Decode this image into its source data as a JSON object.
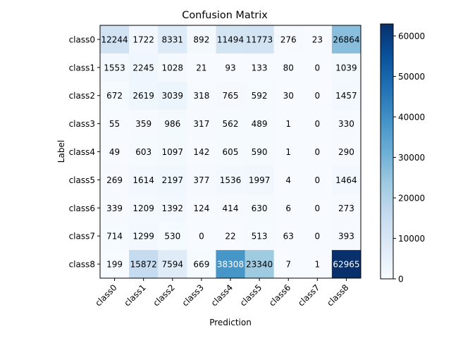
{
  "chart_data": {
    "type": "heatmap",
    "title": "Confusion Matrix",
    "xlabel": "Prediction",
    "ylabel": "Label",
    "x_categories": [
      "class0",
      "class1",
      "class2",
      "class3",
      "class4",
      "class5",
      "class6",
      "class7",
      "class8"
    ],
    "y_categories": [
      "class0",
      "class1",
      "class2",
      "class3",
      "class4",
      "class5",
      "class6",
      "class7",
      "class8"
    ],
    "values": [
      [
        12244,
        1722,
        8331,
        892,
        11494,
        11773,
        276,
        23,
        26864
      ],
      [
        1553,
        2245,
        1028,
        21,
        93,
        133,
        80,
        0,
        1039
      ],
      [
        672,
        2619,
        3039,
        318,
        765,
        592,
        30,
        0,
        1457
      ],
      [
        55,
        359,
        986,
        317,
        562,
        489,
        1,
        0,
        330
      ],
      [
        49,
        603,
        1097,
        142,
        605,
        590,
        1,
        0,
        290
      ],
      [
        269,
        1614,
        2197,
        377,
        1536,
        1997,
        4,
        0,
        1464
      ],
      [
        339,
        1209,
        1392,
        124,
        414,
        630,
        6,
        0,
        273
      ],
      [
        714,
        1299,
        530,
        0,
        22,
        513,
        63,
        0,
        393
      ],
      [
        199,
        15872,
        7594,
        669,
        38308,
        23340,
        7,
        1,
        62965
      ]
    ],
    "colormap": "Blues",
    "colorbar": {
      "range": [
        0,
        62965
      ],
      "ticks": [
        0,
        10000,
        20000,
        30000,
        40000,
        50000,
        60000
      ]
    },
    "grid": false
  }
}
